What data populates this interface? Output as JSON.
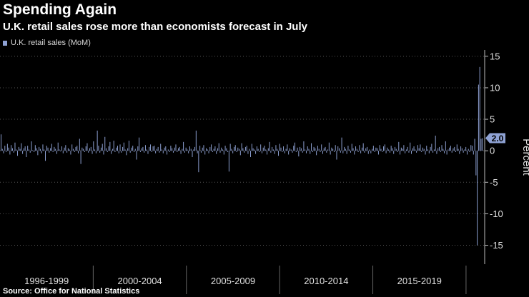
{
  "title": "Spending Again",
  "subtitle": "U.K. retail sales rose more than economists forecast in July",
  "source": "Source: Office for National Statistics",
  "colors": {
    "bar": "#8fa2d4",
    "grid": "#555555",
    "axis": "#bbbbbb",
    "callout": "#8fa2d4",
    "text": "#ffffff"
  },
  "chart_data": {
    "type": "bar",
    "title": "Spending Again",
    "subtitle": "U.K. retail sales rose more than economists forecast in July",
    "series": [
      {
        "name": "U.K. retail sales (MoM)",
        "values": [
          2.6,
          0.3,
          -0.4,
          0.8,
          -0.2,
          1.1,
          0.5,
          -0.6,
          0.9,
          0.4,
          -0.3,
          1.3,
          0.2,
          -0.8,
          0.6,
          0.3,
          1.2,
          -0.5,
          0.4,
          0.7,
          -1.0,
          0.8,
          0.2,
          -0.3,
          1.5,
          0.1,
          -0.2,
          0.9,
          0.4,
          -0.7,
          0.6,
          0.3,
          -0.4,
          1.0,
          0.2,
          -1.6,
          0.8,
          0.5,
          -0.3,
          0.4,
          1.1,
          -0.2,
          0.6,
          0.3,
          -0.5,
          1.3,
          0.2,
          -0.1,
          0.7,
          -0.4,
          0.5,
          0.9,
          -0.3,
          0.4,
          0.2,
          -0.6,
          1.0,
          0.3,
          -0.2,
          0.6,
          0.8,
          -0.4,
          1.9,
          -2.1,
          0.5,
          0.3,
          -0.2,
          0.7,
          1.2,
          -0.3,
          0.4,
          0.6,
          -0.5,
          1.5,
          0.2,
          -0.4,
          3.2,
          0.8,
          -0.3,
          0.5,
          1.1,
          -0.6,
          2.2,
          0.4,
          -0.2,
          0.7,
          1.4,
          -0.5,
          0.3,
          1.6,
          -0.2,
          0.5,
          0.8,
          -0.4,
          1.0,
          -0.3,
          0.6,
          1.3,
          0.2,
          -0.7,
          0.4,
          1.6,
          -0.3,
          0.5,
          0.8,
          -0.2,
          0.3,
          -1.4,
          0.7,
          2.1,
          -0.2,
          0.4,
          0.6,
          -0.3,
          0.9,
          0.2,
          -0.5,
          0.6,
          1.0,
          -0.2,
          0.7,
          0.8,
          -0.4,
          0.3,
          0.6,
          -0.3,
          1.1,
          0.2,
          -0.4,
          0.5,
          0.7,
          -0.6,
          0.2,
          -0.2,
          0.8,
          0.4,
          -0.3,
          0.5,
          1.0,
          -0.2,
          0.4,
          0.6,
          -0.5,
          0.3,
          1.4,
          -0.3,
          0.5,
          0.2,
          -0.4,
          0.7,
          0.3,
          -1.0,
          0.2,
          0.6,
          3.2,
          -0.4,
          -3.4,
          0.8,
          -0.3,
          0.5,
          0.9,
          -0.6,
          0.4,
          0.2,
          -0.4,
          0.6,
          1.0,
          -0.2,
          0.3,
          0.7,
          -0.5,
          0.4,
          1.2,
          -0.3,
          0.5,
          0.2,
          -0.6,
          0.8,
          0.4,
          -0.2,
          -3.3,
          1.1,
          0.3,
          -0.4,
          0.6,
          0.9,
          -0.2,
          0.5,
          0.3,
          -0.7,
          1.2,
          0.4,
          -0.3,
          0.6,
          0.8,
          -0.5,
          0.3,
          -1.0,
          1.1,
          0.4,
          0.2,
          -0.5,
          0.7,
          0.3,
          -0.2,
          1.0,
          -0.4,
          0.5,
          0.8,
          0.2,
          -0.6,
          0.4,
          1.4,
          -0.3,
          0.6,
          0.2,
          -0.5,
          0.9,
          0.3,
          -0.8,
          1.1,
          0.5,
          -0.2,
          0.7,
          -0.4,
          0.3,
          1.0,
          -0.6,
          0.4,
          0.2,
          -0.3,
          0.8,
          1.3,
          -0.2,
          0.5,
          -0.9,
          0.6,
          0.4,
          -0.3,
          1.5,
          0.2,
          -0.4,
          0.7,
          0.3,
          -0.5,
          1.2,
          -0.2,
          0.6,
          0.4,
          -0.7,
          0.8,
          0.3,
          -0.2,
          1.0,
          -0.5,
          0.4,
          0.6,
          -0.3,
          0.2,
          1.3,
          -0.6,
          0.5,
          0.3,
          -0.2,
          0.9,
          -1.4,
          0.7,
          0.4,
          -0.3,
          2.1,
          -0.4,
          0.6,
          0.3,
          -0.5,
          0.8,
          0.2,
          -0.3,
          1.1,
          0.4,
          -0.6,
          0.7,
          0.3,
          -0.2,
          0.9,
          -0.4,
          0.5,
          1.2,
          -0.3,
          0.4,
          0.6,
          -0.5,
          0.2,
          -0.4,
          0.3,
          0.8,
          -0.2,
          0.5,
          0.4,
          -0.6,
          0.9,
          0.3,
          -0.2,
          0.7,
          1.0,
          -0.4,
          0.5,
          0.2,
          -0.3,
          0.8,
          0.4,
          -0.5,
          0.6,
          0.3,
          -0.2,
          1.4,
          -0.6,
          0.5,
          0.3,
          0.9,
          -0.4,
          0.2,
          0.6,
          -0.3,
          1.3,
          -0.5,
          0.4,
          0.7,
          0.2,
          -0.3,
          0.9,
          0.4,
          1.0,
          -0.2,
          0.5,
          0.3,
          -0.6,
          0.8,
          0.2,
          -0.4,
          0.6,
          1.1,
          -0.3,
          0.2,
          2.4,
          -0.5,
          0.4,
          0.6,
          -0.2,
          0.9,
          0.3,
          -0.4,
          1.5,
          -0.6,
          0.2,
          0.5,
          0.8,
          -0.3,
          0.4,
          0.6,
          -0.2,
          1.0,
          0.3,
          -0.5,
          0.7,
          0.4,
          -0.3,
          0.2,
          0.6,
          -0.6,
          0.3,
          -0.2,
          0.9,
          0.8,
          -0.6,
          1.9,
          -3.9,
          -15.0,
          10.5,
          13.3,
          1.9,
          2.0
        ],
        "last_value_label": "2.0"
      }
    ],
    "x_ticks": [
      "1996-1999",
      "2000-2004",
      "2005-2009",
      "2010-2014",
      "2015-2019"
    ],
    "y_ticks": [
      15,
      10,
      5,
      0,
      -5,
      -10,
      -15
    ],
    "ylim": [
      -18,
      16
    ],
    "ylabel": "Percent",
    "xlabel": "",
    "grid": true,
    "legend": "top-left"
  }
}
